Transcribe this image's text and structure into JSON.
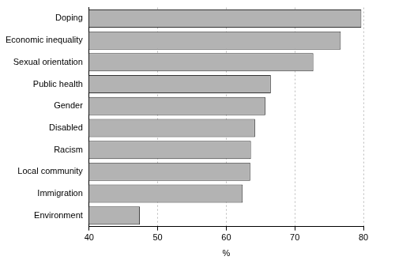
{
  "chart_data": {
    "type": "bar",
    "orientation": "horizontal",
    "categories": [
      "Doping",
      "Economic inequality",
      "Sexual orientation",
      "Public health",
      "Gender",
      "Disabled",
      "Racism",
      "Local community",
      "Immigration",
      "Environment"
    ],
    "values": [
      79.7,
      76.7,
      72.7,
      66.5,
      65.7,
      64.2,
      63.6,
      63.5,
      62.4,
      47.4
    ],
    "color": "#b3b3b3",
    "x_label": "%",
    "xlim": [
      40,
      80
    ],
    "xticks": [
      40,
      50,
      60,
      70,
      80
    ],
    "grid": true
  }
}
